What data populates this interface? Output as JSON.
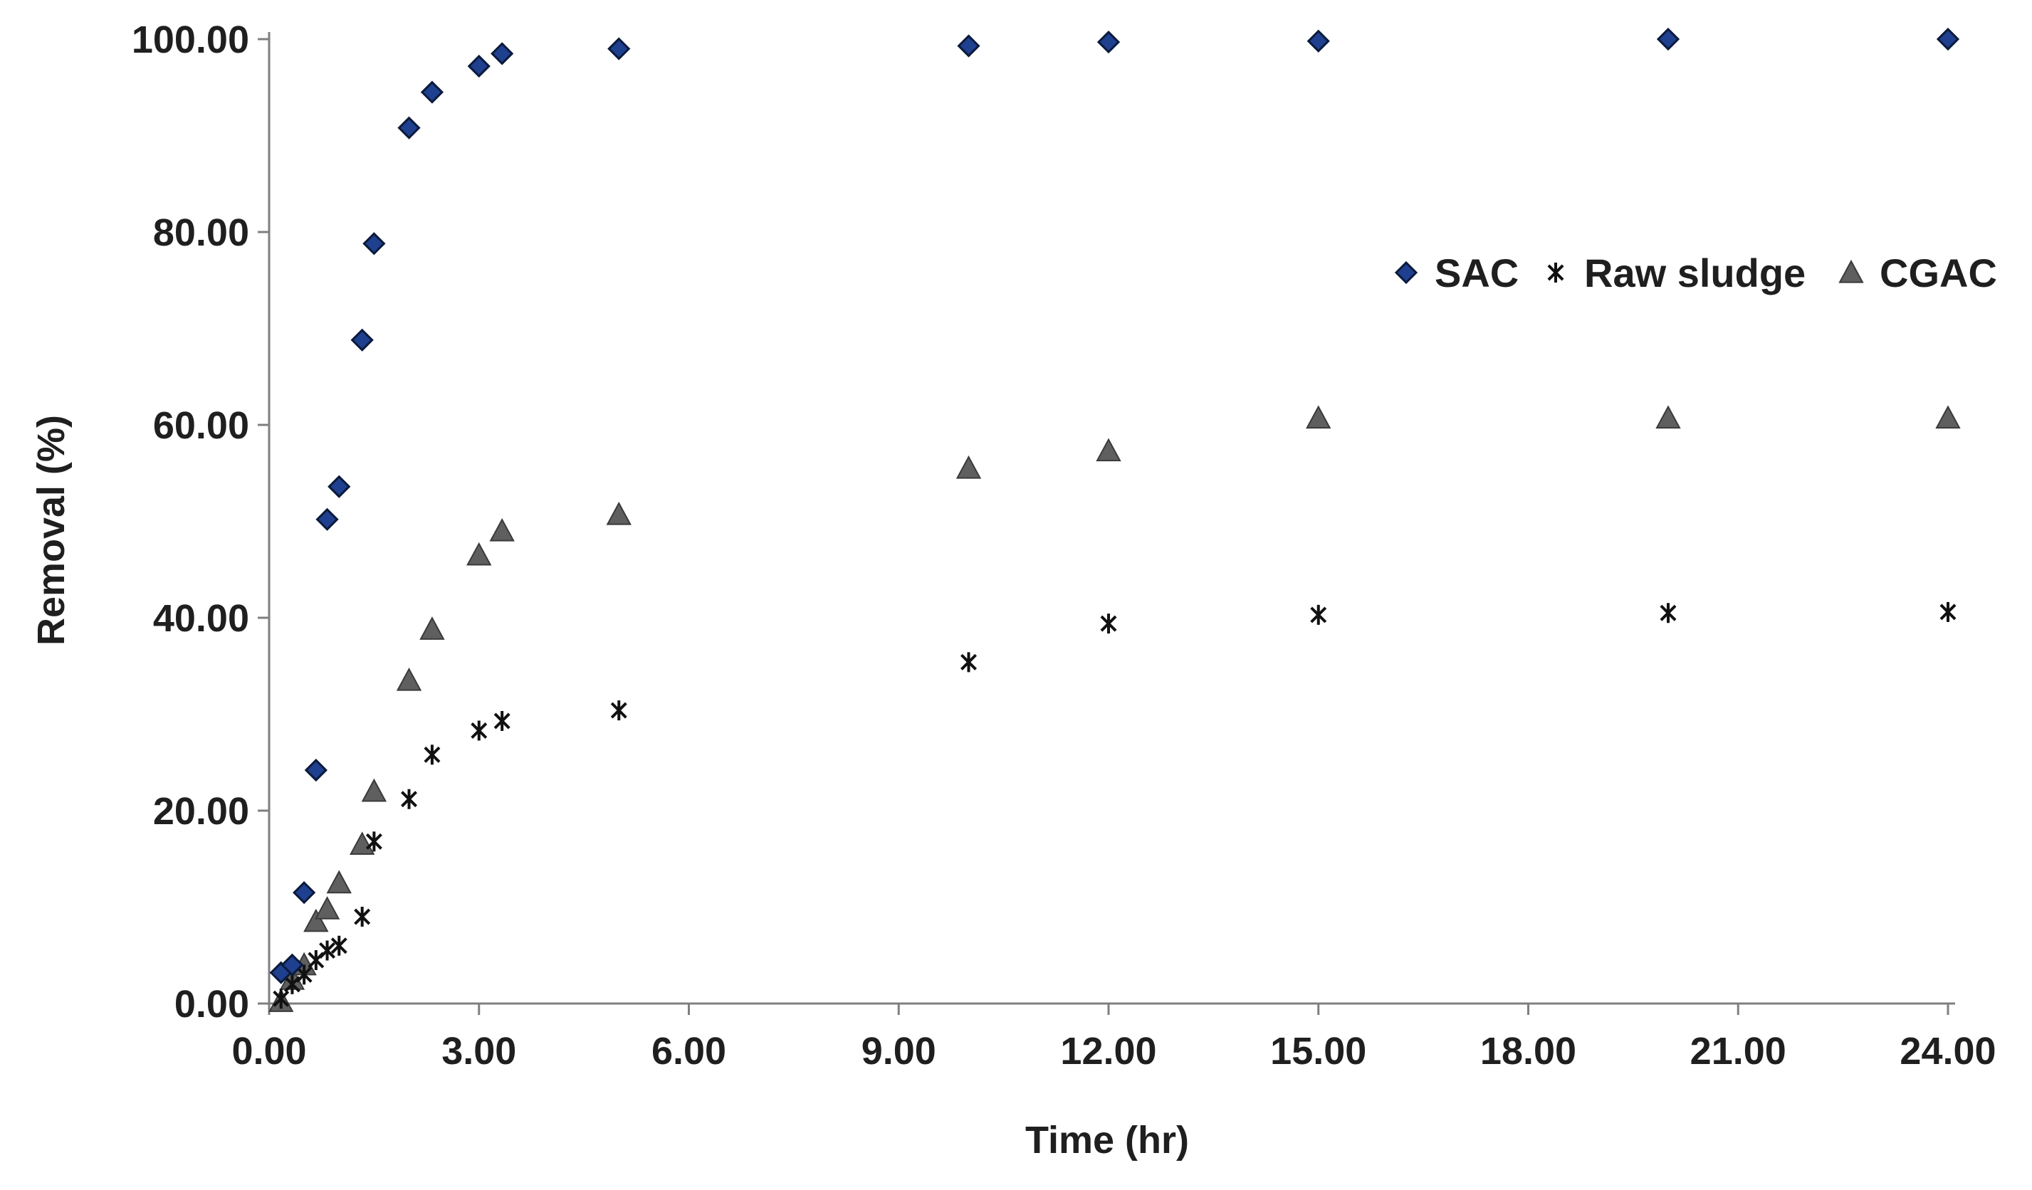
{
  "chart_data": {
    "type": "scatter",
    "title": "",
    "xlabel": "Time (hr)",
    "ylabel": "Removal (%)",
    "xlim": [
      0,
      24
    ],
    "ylim": [
      0,
      100
    ],
    "x_ticks": [
      "0.00",
      "3.00",
      "6.00",
      "9.00",
      "12.00",
      "15.00",
      "18.00",
      "21.00",
      "24.00"
    ],
    "y_ticks": [
      "0.00",
      "20.00",
      "40.00",
      "60.00",
      "80.00",
      "100.00"
    ],
    "legend_position": "right, upper-middle",
    "series": [
      {
        "name": "SAC",
        "marker": "diamond",
        "color": "#1f3f8f",
        "edge_color": "#0a1a3a",
        "points": [
          [
            0.17,
            3.2
          ],
          [
            0.33,
            4.0
          ],
          [
            0.5,
            11.5
          ],
          [
            0.67,
            24.2
          ],
          [
            0.83,
            50.2
          ],
          [
            1.0,
            53.6
          ],
          [
            1.33,
            68.8
          ],
          [
            1.5,
            78.8
          ],
          [
            2.0,
            90.8
          ],
          [
            2.33,
            94.5
          ],
          [
            3.0,
            97.2
          ],
          [
            3.33,
            98.5
          ],
          [
            5.0,
            99.0
          ],
          [
            10.0,
            99.3
          ],
          [
            12.0,
            99.7
          ],
          [
            15.0,
            99.8
          ],
          [
            20.0,
            100.0
          ],
          [
            24.0,
            100.0
          ]
        ]
      },
      {
        "name": "Raw sludge",
        "marker": "star",
        "color": "#111111",
        "points": [
          [
            0.17,
            0.5
          ],
          [
            0.33,
            2.0
          ],
          [
            0.5,
            3.0
          ],
          [
            0.67,
            4.5
          ],
          [
            0.83,
            5.5
          ],
          [
            1.0,
            6.0
          ],
          [
            1.33,
            9.0
          ],
          [
            1.5,
            16.8
          ],
          [
            2.0,
            21.2
          ],
          [
            2.33,
            25.8
          ],
          [
            3.0,
            28.3
          ],
          [
            3.33,
            29.3
          ],
          [
            5.0,
            30.4
          ],
          [
            10.0,
            35.4
          ],
          [
            12.0,
            39.4
          ],
          [
            15.0,
            40.3
          ],
          [
            20.0,
            40.5
          ],
          [
            24.0,
            40.6
          ]
        ]
      },
      {
        "name": "CGAC",
        "marker": "triangle",
        "color": "#5f5f5f",
        "edge_color": "#3a3a3a",
        "points": [
          [
            0.17,
            0.2
          ],
          [
            0.33,
            2.5
          ],
          [
            0.5,
            4.0
          ],
          [
            0.67,
            8.5
          ],
          [
            0.83,
            9.8
          ],
          [
            1.0,
            12.5
          ],
          [
            1.33,
            16.5
          ],
          [
            1.5,
            22.0
          ],
          [
            2.0,
            33.5
          ],
          [
            2.33,
            38.8
          ],
          [
            3.0,
            46.5
          ],
          [
            3.33,
            49.0
          ],
          [
            5.0,
            50.7
          ],
          [
            10.0,
            55.5
          ],
          [
            12.0,
            57.3
          ],
          [
            15.0,
            60.7
          ],
          [
            20.0,
            60.7
          ],
          [
            24.0,
            60.7
          ]
        ]
      }
    ]
  }
}
